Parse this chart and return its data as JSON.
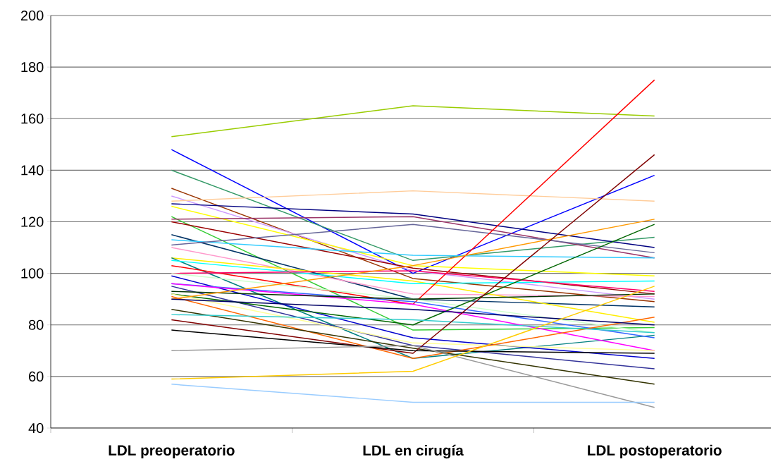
{
  "chart_data": {
    "type": "line",
    "categories": [
      "LDL preoperatorio",
      "LDL en cirugía",
      "LDL postoperatorio"
    ],
    "ylim": [
      40,
      200
    ],
    "yticks": [
      40,
      60,
      80,
      100,
      120,
      140,
      160,
      180,
      200
    ],
    "grid": "y",
    "series": [
      {
        "color": "#99cc00",
        "values": [
          153,
          165,
          161
        ]
      },
      {
        "color": "#0000ff",
        "values": [
          148,
          100,
          138
        ]
      },
      {
        "color": "#339966",
        "values": [
          140,
          105,
          114
        ]
      },
      {
        "color": "#993300",
        "values": [
          133,
          98,
          89
        ]
      },
      {
        "color": "#cc99ff",
        "values": [
          130,
          101,
          90
        ]
      },
      {
        "color": "#ffcc99",
        "values": [
          128,
          132,
          128
        ]
      },
      {
        "color": "#000080",
        "values": [
          127,
          123,
          110
        ]
      },
      {
        "color": "#ffff00",
        "values": [
          126,
          103,
          99
        ]
      },
      {
        "color": "#33cc33",
        "values": [
          122,
          78,
          79
        ]
      },
      {
        "color": "#993366",
        "values": [
          121,
          122,
          106
        ]
      },
      {
        "color": "#990000",
        "values": [
          120,
          102,
          92
        ]
      },
      {
        "color": "#003366",
        "values": [
          115,
          90,
          87
        ]
      },
      {
        "color": "#33ccff",
        "values": [
          113,
          107,
          106
        ]
      },
      {
        "color": "#666699",
        "values": [
          111,
          119,
          108
        ]
      },
      {
        "color": "#ff99cc",
        "values": [
          110,
          92,
          91
        ]
      },
      {
        "color": "#ffee00",
        "values": [
          106,
          97,
          81
        ]
      },
      {
        "color": "#008080",
        "values": [
          106,
          67,
          76
        ]
      },
      {
        "color": "#00ffff",
        "values": [
          105,
          96,
          97
        ]
      },
      {
        "color": "#ff0000",
        "values": [
          103,
          88,
          175
        ]
      },
      {
        "color": "#ff0066",
        "values": [
          100,
          101,
          93
        ]
      },
      {
        "color": "#ccffcc",
        "values": [
          100,
          90,
          77
        ]
      },
      {
        "color": "#0000cc",
        "values": [
          99,
          75,
          67
        ]
      },
      {
        "color": "#3366ff",
        "values": [
          96,
          89,
          75
        ]
      },
      {
        "color": "#ff00ff",
        "values": [
          96,
          88,
          70
        ]
      },
      {
        "color": "#333399",
        "values": [
          95,
          72,
          63
        ]
      },
      {
        "color": "#003300",
        "values": [
          93,
          90,
          92
        ]
      },
      {
        "color": "#006600",
        "values": [
          92,
          80,
          119
        ]
      },
      {
        "color": "#ffff99",
        "values": [
          92,
          73,
          70
        ]
      },
      {
        "color": "#ff9900",
        "values": [
          90,
          103,
          121
        ]
      },
      {
        "color": "#ff6600",
        "values": [
          91,
          67,
          83
        ]
      },
      {
        "color": "#000066",
        "values": [
          90,
          86,
          80
        ]
      },
      {
        "color": "#333300",
        "values": [
          86,
          71,
          57
        ]
      },
      {
        "color": "#33cccc",
        "values": [
          84,
          82,
          77
        ]
      },
      {
        "color": "#800000",
        "values": [
          82,
          69,
          146
        ]
      },
      {
        "color": "#000000",
        "values": [
          78,
          70,
          69
        ]
      },
      {
        "color": "#999999",
        "values": [
          70,
          72,
          48
        ]
      },
      {
        "color": "#ffcc00",
        "values": [
          59,
          62,
          95
        ]
      },
      {
        "color": "#99ccff",
        "values": [
          57,
          50,
          50
        ]
      }
    ]
  }
}
